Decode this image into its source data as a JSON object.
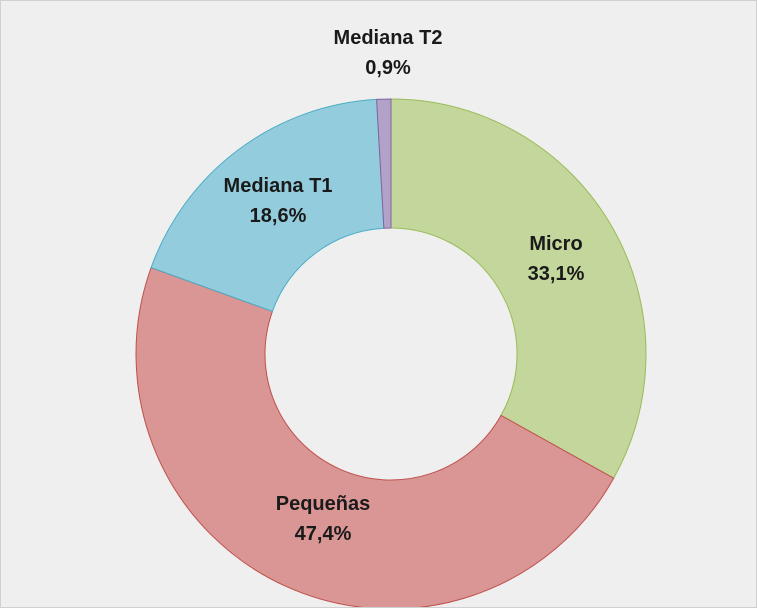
{
  "chart_data": {
    "type": "donut",
    "categories": [
      "Micro",
      "Pequeñas",
      "Mediana T1",
      "Mediana T2"
    ],
    "values": [
      33.1,
      47.4,
      18.6,
      0.9
    ],
    "value_labels": [
      "33,1%",
      "47,4%",
      "18,6%",
      "0,9%"
    ],
    "colors": [
      "#c3d69b",
      "#d99694",
      "#93cddd",
      "#b3a2c7"
    ],
    "edge_colors": [
      "#9bbb59",
      "#c0504d",
      "#4bacc6",
      "#8064a2"
    ]
  }
}
